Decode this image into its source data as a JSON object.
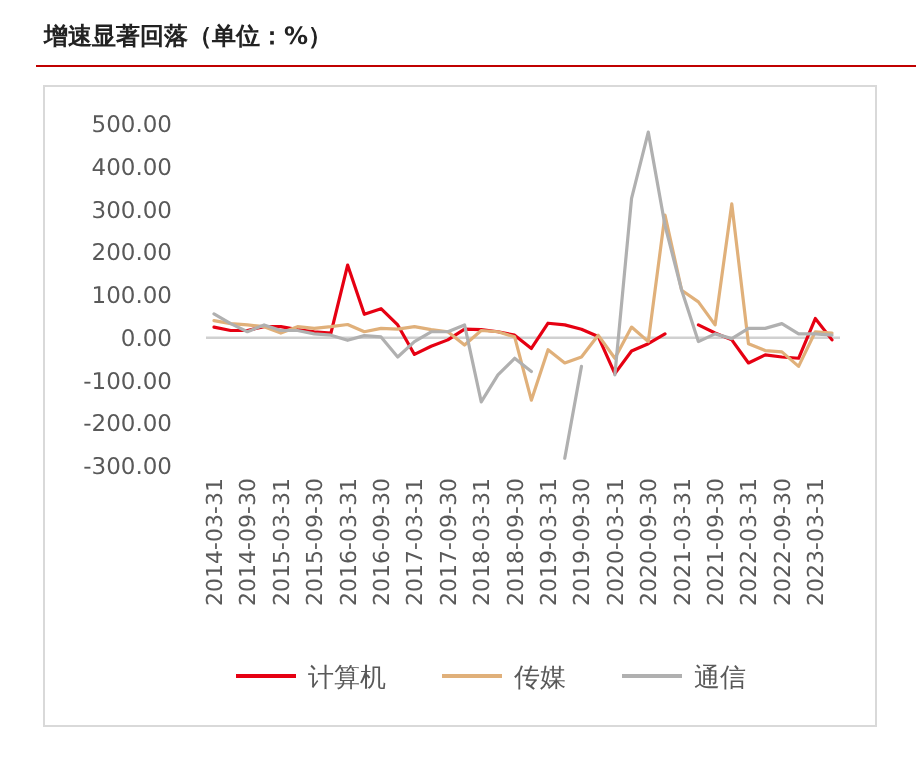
{
  "chart_data": {
    "type": "line",
    "title": "增速显著回落（单位：%）",
    "categories": [
      "2014-03-31",
      null,
      "2014-09-30",
      null,
      "2015-03-31",
      null,
      "2015-09-30",
      null,
      "2016-03-31",
      null,
      "2016-09-30",
      null,
      "2017-03-31",
      null,
      "2017-09-30",
      null,
      "2018-03-31",
      null,
      "2018-09-30",
      null,
      "2019-03-31",
      null,
      "2019-09-30",
      null,
      "2020-03-31",
      null,
      "2020-09-30",
      null,
      "2021-03-31",
      null,
      "2021-09-30",
      null,
      "2022-03-31",
      null,
      "2022-09-30",
      null,
      "2023-03-31",
      null
    ],
    "series": [
      {
        "name": "计算机",
        "color": "#e60012",
        "values": [
          25,
          17,
          17,
          26,
          26,
          19,
          14,
          11,
          170,
          55,
          68,
          30,
          -39,
          -20,
          -5,
          20,
          19,
          14,
          6,
          -25,
          34,
          30,
          20,
          3,
          -84,
          -31,
          -14,
          9,
          null,
          30,
          11,
          -5,
          -59,
          -40,
          -45,
          -48,
          45,
          -5
        ]
      },
      {
        "name": "传媒",
        "color": "#e0b07a",
        "values": [
          40,
          33,
          30,
          26,
          11,
          26,
          22,
          26,
          31,
          14,
          22,
          20,
          26,
          19,
          14,
          -17,
          17,
          14,
          2,
          -146,
          -28,
          -59,
          -45,
          6,
          -48,
          25,
          -9,
          287,
          111,
          84,
          30,
          313,
          -14,
          -30,
          -33,
          -67,
          14,
          11
        ]
      },
      {
        "name": "通信",
        "color": "#b0b0b0",
        "values": [
          56,
          33,
          14,
          30,
          17,
          17,
          9,
          6,
          -6,
          5,
          2,
          -45,
          -9,
          14,
          14,
          30,
          -150,
          -87,
          -48,
          -79,
          null,
          -282,
          -67,
          null,
          -87,
          326,
          481,
          263,
          111,
          -9,
          9,
          -2,
          22,
          22,
          33,
          9,
          9,
          6
        ]
      }
    ],
    "ylim": [
      -300,
      500
    ],
    "yticks": [
      {
        "value": -300,
        "label": "-300.00"
      },
      {
        "value": -200,
        "label": "-200.00"
      },
      {
        "value": -100,
        "label": "-100.00"
      },
      {
        "value": 0,
        "label": "0.00"
      },
      {
        "value": 100,
        "label": "100.00"
      },
      {
        "value": 200,
        "label": "200.00"
      },
      {
        "value": 300,
        "label": "300.00"
      },
      {
        "value": 400,
        "label": "400.00"
      },
      {
        "value": 500,
        "label": "500.00"
      }
    ],
    "legend": "bottom",
    "marker": "none",
    "line_style": "solid"
  }
}
